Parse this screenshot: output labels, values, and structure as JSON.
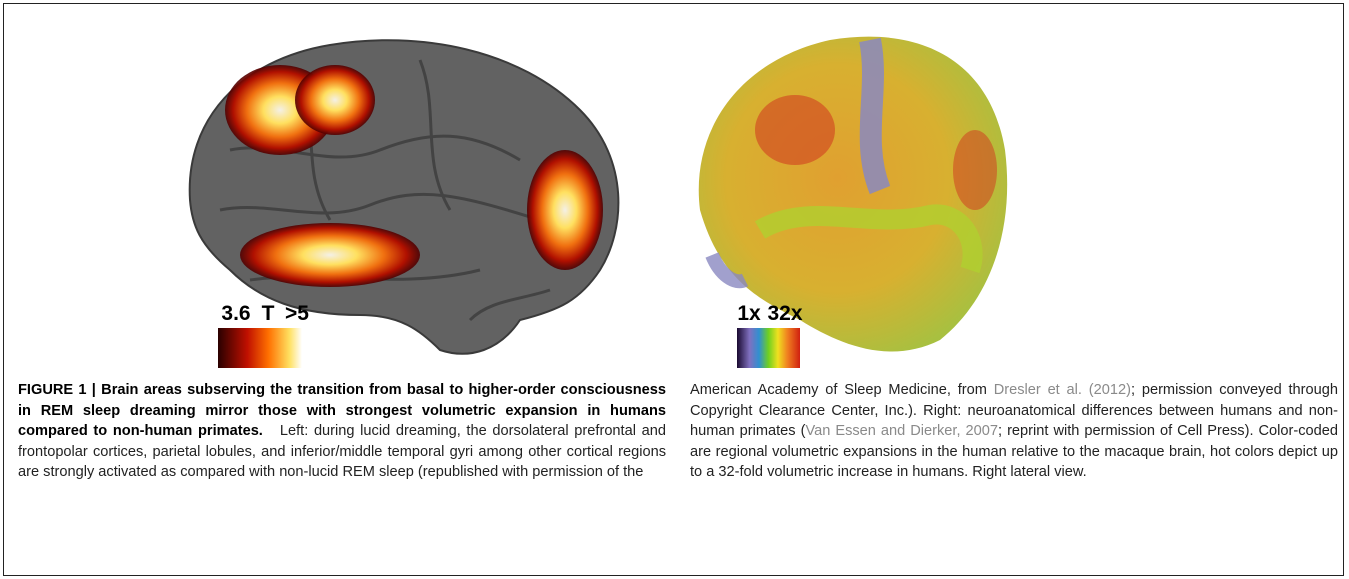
{
  "figure": {
    "left_panel": {
      "scale": {
        "min": "3.6",
        "unit": "T",
        "max": ">5"
      }
    },
    "right_panel": {
      "scale": {
        "min": "1x",
        "max": "32x"
      }
    }
  },
  "caption": {
    "label": "FIGURE 1 |",
    "title": "Brain areas subserving the transition from basal to higher-order consciousness in REM sleep dreaming mirror those with strongest volumetric expansion in humans compared to non-human primates.",
    "left_text": "Left: during lucid dreaming, the dorsolateral prefrontal and frontopolar cortices, parietal lobules, and inferior/middle temporal gyri among other cortical regions are strongly activated as compared with non-lucid REM sleep (republished with permission of the",
    "right_text_1": "American Academy of Sleep Medicine, from",
    "citation_1": "Dresler et al. (2012)",
    "right_text_2": "; permission conveyed through Copyright Clearance Center, Inc.). Right: neuroanatomical differences between humans and non-human primates (",
    "citation_2": "Van Essen and Dierker, 2007",
    "right_text_3": "; reprint with permission of Cell Press). Color-coded are regional volumetric expansions in the human relative to the macaque brain, hot colors depict up to a 32-fold volumetric increase in humans. Right lateral view."
  }
}
